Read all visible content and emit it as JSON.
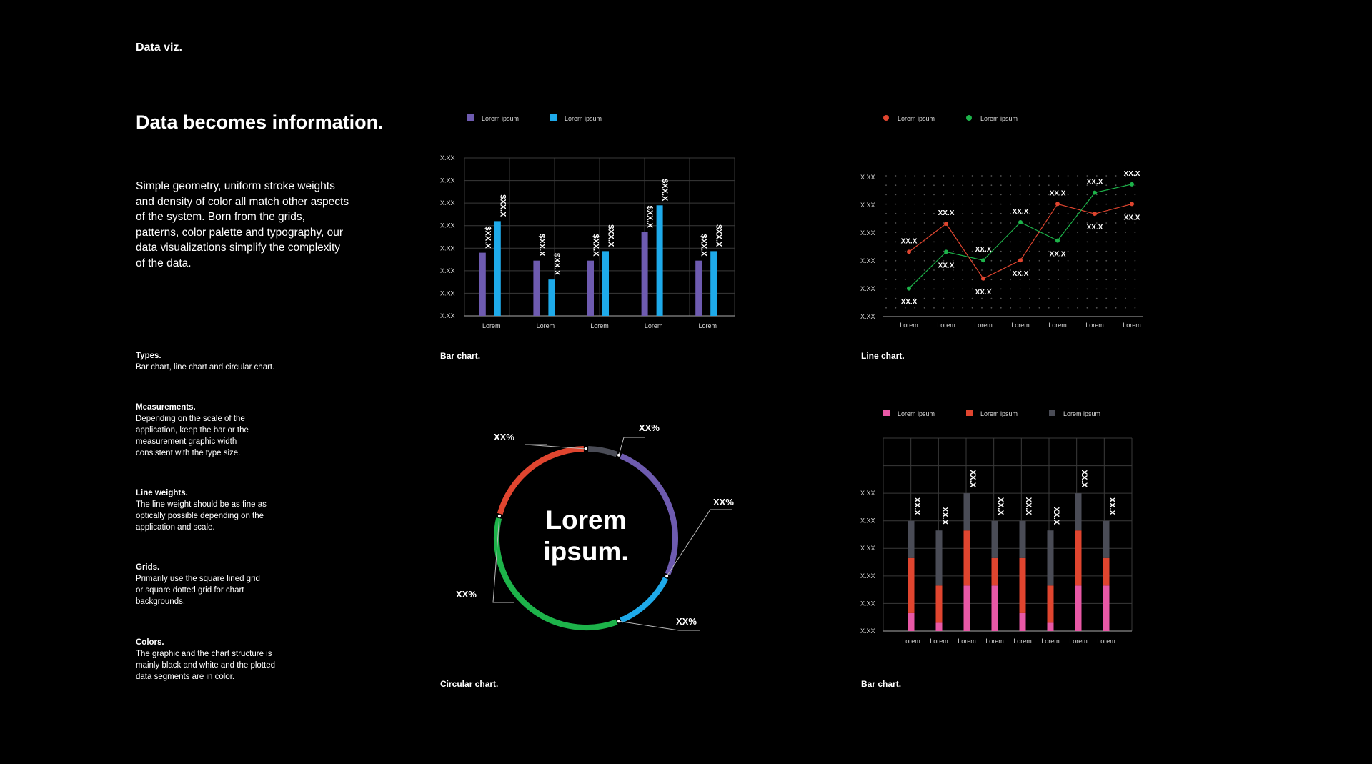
{
  "page": {
    "section_label": "Data viz.",
    "headline": "Data becomes information.",
    "intro": "Simple geometry, uniform stroke weights and density of color all match other aspects of the system. Born from the grids, patterns, color palette and typography, our data visualizations simplify the complexity of the data.",
    "notes": [
      {
        "title": "Types.",
        "body": "Bar chart, line chart and circular chart."
      },
      {
        "title": "Measurements.",
        "body": "Depending on the scale of the application, keep the bar or the measurement graphic width consistent with the type size."
      },
      {
        "title": "Line weights.",
        "body": "The line weight should be as fine as optically possible depending on the application and scale."
      },
      {
        "title": "Grids.",
        "body": "Primarily use the square lined grid or square dotted grid for chart backgrounds."
      },
      {
        "title": "Colors.",
        "body": "The graphic and the chart structure is mainly black and white and the plotted data segments are in color."
      }
    ],
    "captions": {
      "bar": "Bar chart.",
      "line": "Line chart.",
      "circular": "Circular chart.",
      "stacked": "Bar chart."
    }
  },
  "colors": {
    "purple": "#6e5bb0",
    "blue": "#1eaaea",
    "red": "#e0452f",
    "green": "#1db34a",
    "pink": "#e858a6",
    "gray": "#4a4c56"
  },
  "chart_data": [
    {
      "type": "bar",
      "categories": [
        "Lorem",
        "Lorem",
        "Lorem",
        "Lorem",
        "Lorem"
      ],
      "series": [
        {
          "name": "Lorem ipsum",
          "color": "#6e5bb0",
          "values": [
            4,
            3.5,
            3.5,
            5.3,
            3.5
          ],
          "labels": [
            "$XX.X",
            "$XX.X",
            "$XX.X",
            "$XX.X",
            "$XX.X"
          ]
        },
        {
          "name": "Lorem ipsum",
          "color": "#1eaaea",
          "values": [
            6,
            2.3,
            4.1,
            7,
            4.1
          ],
          "labels": [
            "$XX.X",
            "$XX.X",
            "$XX.X",
            "$XX.X",
            "$XX.X"
          ]
        }
      ],
      "ytick_labels": [
        "X.XX",
        "X.XX",
        "X.XX",
        "X.XX",
        "X.XX",
        "X.XX",
        "X.XX",
        "X.XX"
      ],
      "ylim": [
        0,
        10
      ],
      "grid": "lines",
      "legend": "top-left"
    },
    {
      "type": "line",
      "categories": [
        "Lorem",
        "Lorem",
        "Lorem",
        "Lorem",
        "Lorem",
        "Lorem",
        "Lorem"
      ],
      "series": [
        {
          "name": "Lorem ipsum",
          "color": "#e0452f",
          "values": [
            2.3,
            3.3,
            1.35,
            2,
            4,
            3.65,
            4
          ]
        },
        {
          "name": "Lorem ipsum",
          "color": "#1db34a",
          "values": [
            1,
            2.3,
            2,
            3.35,
            2.7,
            4.4,
            4.7
          ]
        }
      ],
      "point_labels": {
        "red": [
          "XX.X",
          "XX.X",
          "XX.X",
          "XX.X",
          "XX.X",
          "XX.X",
          "XX.X"
        ],
        "green": [
          "XX.X",
          "XX.X",
          "XX.X",
          "XX.X",
          "XX.X",
          "XX.X",
          "XX.X"
        ]
      },
      "ytick_labels": [
        "X.XX",
        "X.XX",
        "X.XX",
        "X.XX",
        "X.XX",
        "X.XX"
      ],
      "ylim": [
        0,
        5
      ],
      "grid": "dots",
      "legend": "top-left"
    },
    {
      "type": "pie",
      "center_text": [
        "Lorem",
        "ipsum."
      ],
      "segments": [
        {
          "color": "#4a4c56",
          "value": 6,
          "label": "XX%"
        },
        {
          "color": "#6e5bb0",
          "value": 26,
          "label": "XX%"
        },
        {
          "color": "#1eaaea",
          "value": 12,
          "label": "XX%"
        },
        {
          "color": "#1db34a",
          "value": 35,
          "label": "XX%"
        },
        {
          "color": "#e0452f",
          "value": 21,
          "label": "XX%"
        }
      ]
    },
    {
      "type": "bar",
      "stacked": true,
      "categories": [
        "Lorem",
        "Lorem",
        "Lorem",
        "Lorem",
        "Lorem",
        "Lorem",
        "Lorem",
        "Lorem"
      ],
      "series": [
        {
          "name": "Lorem ipsum",
          "color": "#e858a6",
          "values": [
            0.65,
            0.3,
            1.65,
            1.65,
            0.65,
            0.3,
            1.65,
            1.65
          ]
        },
        {
          "name": "Lorem ipsum",
          "color": "#e0452f",
          "values": [
            2,
            1.35,
            2,
            1,
            2,
            1.35,
            2,
            1
          ]
        },
        {
          "name": "Lorem ipsum",
          "color": "#4a4c56",
          "values": [
            1.35,
            2,
            1.35,
            1.35,
            1.35,
            2,
            1.35,
            1.35
          ]
        }
      ],
      "bar_labels": [
        "XX.X",
        "XX.X",
        "XX.X",
        "XX.X",
        "XX.X",
        "XX.X",
        "XX.X",
        "XX.X"
      ],
      "ytick_labels": [
        "X.XX",
        "X.XX",
        "X.XX",
        "X.XX",
        "X.XX",
        "X.XX"
      ],
      "ylim": [
        0,
        7
      ],
      "grid": "lines",
      "legend": "top-left"
    }
  ]
}
